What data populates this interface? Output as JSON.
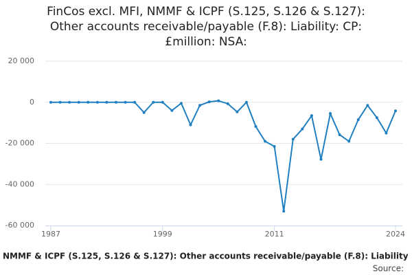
{
  "chart_data": {
    "type": "line",
    "title": [
      "FinCos excl. MFI, NMMF & ICPF (S.125, S.126 & S.127):",
      "Other accounts receivable/payable (F.8): Liability: CP:",
      "£million: NSA:"
    ],
    "x": [
      1987,
      1988,
      1989,
      1990,
      1991,
      1992,
      1993,
      1994,
      1995,
      1996,
      1997,
      1998,
      1999,
      2000,
      2001,
      2002,
      2003,
      2004,
      2005,
      2006,
      2007,
      2008,
      2009,
      2010,
      2011,
      2012,
      2013,
      2014,
      2015,
      2016,
      2017,
      2018,
      2019,
      2020,
      2021,
      2022,
      2023,
      2024
    ],
    "series": [
      {
        "name": "NMMF & ICPF (S.125, S.126 & S.127): Other accounts receivable/payable (F.8): Liability",
        "color": "#1f7fc1",
        "values": [
          0,
          0,
          0,
          0,
          0,
          0,
          0,
          0,
          0,
          0,
          -5000,
          0,
          0,
          -4000,
          -500,
          -11000,
          -1500,
          200,
          700,
          -700,
          -4700,
          0,
          -11800,
          -19000,
          -21500,
          -53000,
          -18000,
          -13000,
          -6500,
          -27800,
          -5500,
          -15800,
          -19000,
          -8500,
          -1500,
          -7500,
          -15000,
          -4200
        ]
      }
    ],
    "xlim": [
      1987,
      2024
    ],
    "xticks": [
      1987,
      1999,
      2011,
      2024
    ],
    "ylim": [
      -60000,
      20000
    ],
    "yticks": [
      {
        "value": -60000,
        "label": "-60 000"
      },
      {
        "value": -40000,
        "label": "-40 000"
      },
      {
        "value": -20000,
        "label": "-20 000"
      },
      0,
      {
        "value": 20000,
        "label": "20 000"
      }
    ],
    "grid": true,
    "source": "Source:"
  }
}
